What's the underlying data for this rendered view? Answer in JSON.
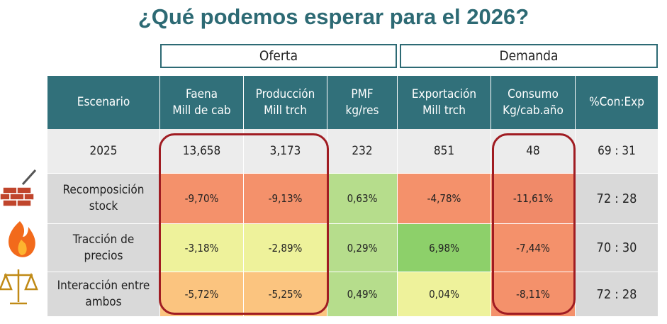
{
  "title": "¿Qué podemos esperar para el 2026?",
  "groups": [
    "Oferta",
    "Demanda"
  ],
  "table": {
    "header": [
      "Escenario",
      "Faena\nMill de cab",
      "Producción\nMill trch",
      "PMF\nkg/res",
      "Exportación\nMill trch",
      "Consumo\nKg/cab.año",
      "%Con:Exp"
    ],
    "rows": [
      [
        "2025",
        "13,658",
        "3,173",
        "232",
        "851",
        "48",
        "69 : 31"
      ],
      [
        "Recomposición\nstock",
        "-9,70%",
        "-9,13%",
        "0,63%",
        "-4,78%",
        "-11,61%",
        "72 :  28"
      ],
      [
        "Tracción de\nprecios",
        "-3,18%",
        "-2,89%",
        "0,29%",
        "6,98%",
        "-7,44%",
        "70 :  30"
      ],
      [
        "Interacción entre\nambos",
        "-5,72%",
        "-5,25%",
        "0,49%",
        "0,04%",
        "-8,11%",
        "72 :  28"
      ]
    ]
  }
}
